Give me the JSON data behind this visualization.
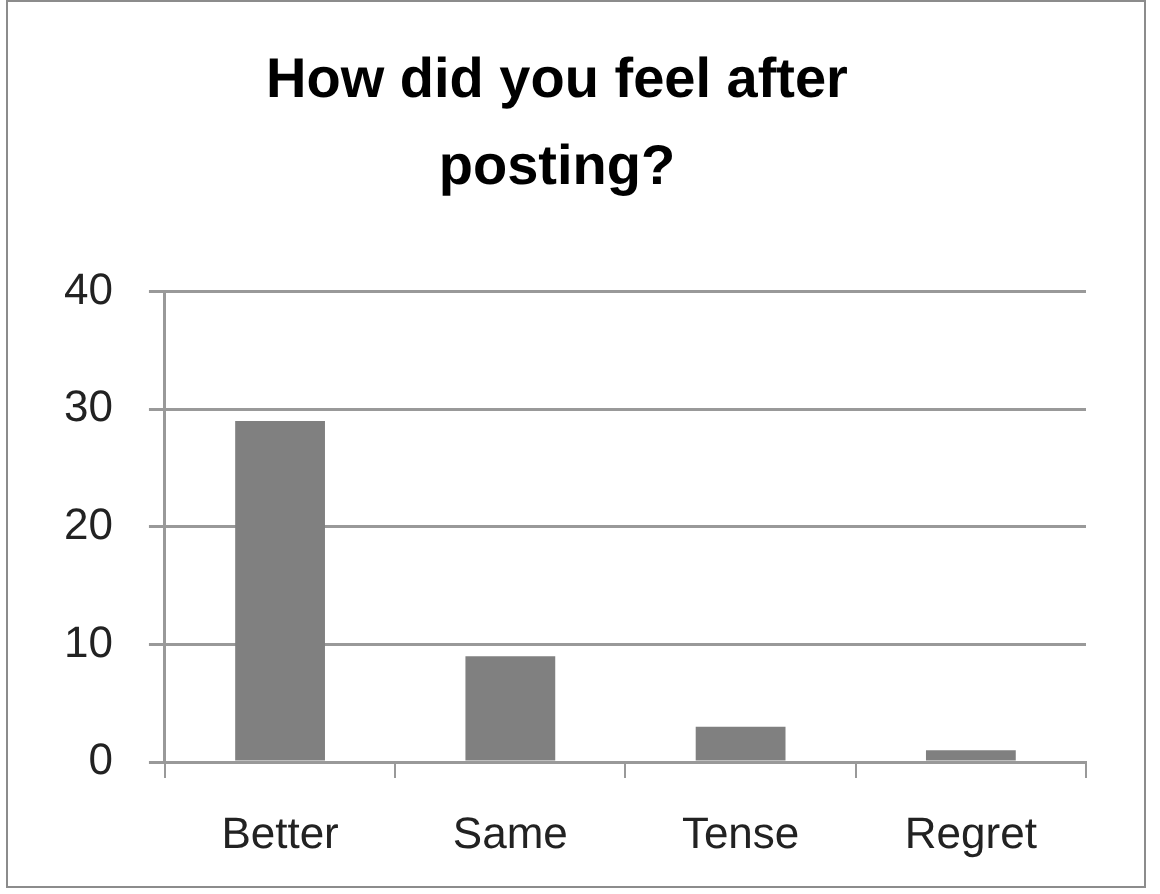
{
  "chart_data": {
    "type": "bar",
    "title": "How did you feel after posting?",
    "categories": [
      "Better",
      "Same",
      "Tense",
      "Regret"
    ],
    "values": [
      29,
      9,
      3,
      1
    ],
    "color": "#808080",
    "ylim": [
      0,
      40
    ],
    "yticks": [
      0,
      10,
      20,
      30,
      40
    ],
    "grid": "y"
  }
}
